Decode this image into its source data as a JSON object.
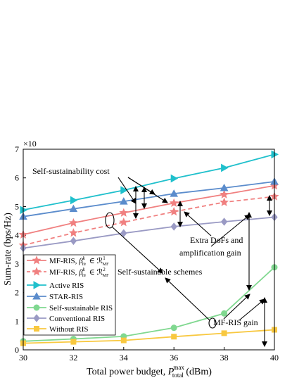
{
  "chart_data": {
    "type": "line",
    "xlabel_main": "Total power budget, ",
    "xlabel_sym": "P",
    "xlabel_sup": "max",
    "xlabel_sub": "total",
    "xlabel_unit": " (dBm)",
    "ylabel": "Sum-rate (bps/Hz)",
    "multiplier": "×10",
    "xlim": [
      30,
      40
    ],
    "ylim": [
      0,
      7
    ],
    "x": [
      30,
      32,
      34,
      36,
      38,
      40
    ],
    "x_tick_labels": [
      "30",
      "32",
      "34",
      "36",
      "38",
      "40"
    ],
    "y_tick_labels": [
      "0",
      "1",
      "2",
      "3",
      "4",
      "5",
      "6",
      "7"
    ],
    "legend_position": "lower-left",
    "series": [
      {
        "name": "MF-RIS, βmk ∈ ℛ1MF",
        "legend_main": "MF-RIS, ",
        "legend_sup": "1",
        "color": "#f08080",
        "dash": "",
        "marker": "star",
        "values": [
          4.02,
          4.43,
          4.78,
          5.12,
          5.42,
          5.73
        ]
      },
      {
        "name": "MF-RIS, βmk ∈ ℛ2MF",
        "legend_main": "MF-RIS, ",
        "legend_sup": "2",
        "color": "#f08080",
        "dash": "6,4",
        "marker": "star",
        "values": [
          3.65,
          4.08,
          4.45,
          4.82,
          5.15,
          5.35
        ]
      },
      {
        "name": "Active RIS",
        "color": "#20c0cc",
        "dash": "",
        "marker": "triangle-right",
        "values": [
          4.88,
          5.22,
          5.57,
          5.98,
          6.35,
          6.82
        ]
      },
      {
        "name": "STAR-RIS",
        "color": "#5b8ccc",
        "dash": "",
        "marker": "triangle-up",
        "values": [
          4.65,
          4.92,
          5.18,
          5.45,
          5.65,
          5.87
        ]
      },
      {
        "name": "Self-sustainable RIS",
        "color": "#80d890",
        "dash": "",
        "marker": "circle",
        "values": [
          0.3,
          0.38,
          0.47,
          0.77,
          1.27,
          2.88
        ]
      },
      {
        "name": "Conventional RIS",
        "color": "#9a9ac4",
        "dash": "",
        "marker": "diamond",
        "values": [
          3.55,
          3.8,
          4.07,
          4.3,
          4.47,
          4.63
        ]
      },
      {
        "name": "Without RIS",
        "color": "#f8c840",
        "dash": "",
        "marker": "square",
        "values": [
          0.23,
          0.28,
          0.33,
          0.46,
          0.58,
          0.7
        ]
      }
    ],
    "annotations": {
      "self_cost": "Self-sustainability cost",
      "extra_dofs_1": "Extra DoFs and",
      "extra_dofs_2": "amplification gain",
      "self_schemes": "Self-sustainable schemes",
      "mf_gain": "MF-RIS gain"
    }
  }
}
